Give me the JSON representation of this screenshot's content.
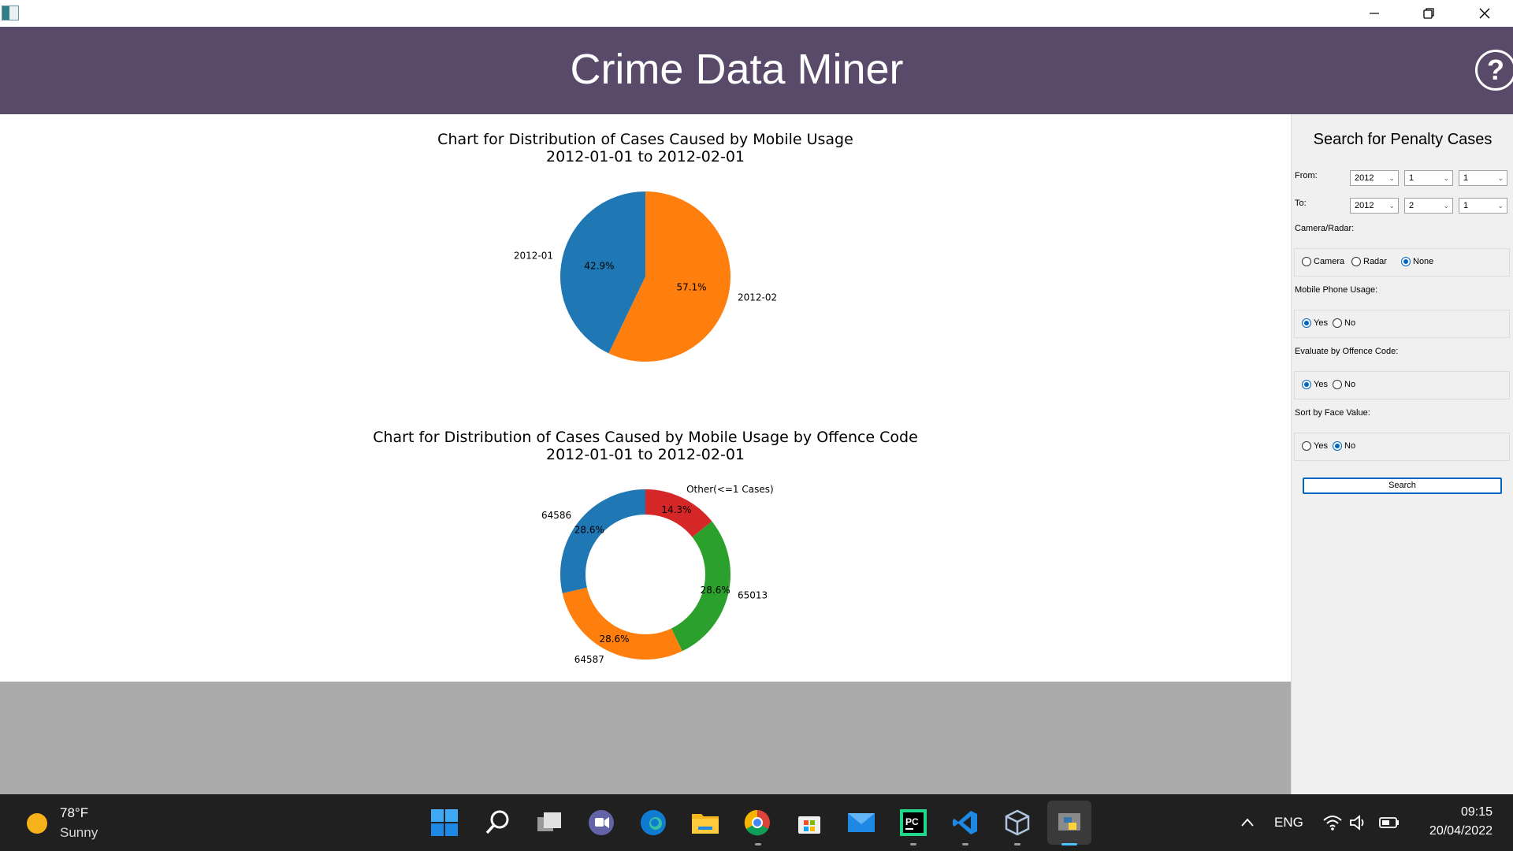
{
  "window": {
    "title": "Crime Data Miner",
    "controls": [
      "minimize",
      "restore",
      "close"
    ]
  },
  "header": {
    "title": "Crime Data Miner",
    "help_label": "?"
  },
  "charts": {
    "chart1": {
      "title_line1": "Chart for Distribution of Cases Caused by Mobile Usage",
      "title_line2": "2012-01-01 to 2012-02-01"
    },
    "chart2": {
      "title_line1": "Chart for Distribution of Cases Caused by Mobile Usage by Offence Code",
      "title_line2": "2012-01-01 to 2012-02-01"
    }
  },
  "chart_data": [
    {
      "type": "pie",
      "title": "Chart for Distribution of Cases Caused by Mobile Usage 2012-01-01 to 2012-02-01",
      "categories": [
        "2012-01",
        "2012-02"
      ],
      "values": [
        42.9,
        57.1
      ],
      "labels": [
        "42.9%",
        "57.1%"
      ],
      "colors": [
        "#1f77b4",
        "#ff7f0e"
      ],
      "start_angle": 90,
      "direction": "counterclockwise"
    },
    {
      "type": "pie",
      "style": "donut",
      "title": "Chart for Distribution of Cases Caused by Mobile Usage by Offence Code 2012-01-01 to 2012-02-01",
      "categories": [
        "64586",
        "64587",
        "65013",
        "Other(<=1 Cases)"
      ],
      "values": [
        28.6,
        28.6,
        28.6,
        14.3
      ],
      "labels": [
        "28.6%",
        "28.6%",
        "28.6%",
        "14.3%"
      ],
      "colors": [
        "#1f77b4",
        "#ff7f0e",
        "#2ca02c",
        "#d62728"
      ],
      "start_angle": 90,
      "direction": "counterclockwise"
    }
  ],
  "sidebar": {
    "title": "Search for Penalty Cases",
    "from_label": "From:",
    "to_label": "To:",
    "from": {
      "year": "2012",
      "month": "1",
      "day": "1"
    },
    "to": {
      "year": "2012",
      "month": "2",
      "day": "1"
    },
    "camera_radar": {
      "label": "Camera/Radar:",
      "options": [
        "Camera",
        "Radar",
        "None"
      ],
      "selected": "None"
    },
    "mobile_usage": {
      "label": "Mobile Phone Usage:",
      "options": [
        "Yes",
        "No"
      ],
      "selected": "Yes"
    },
    "offence_code": {
      "label": "Evaluate by Offence Code:",
      "options": [
        "Yes",
        "No"
      ],
      "selected": "Yes"
    },
    "face_value": {
      "label": "Sort by Face Value:",
      "options": [
        "Yes",
        "No"
      ],
      "selected": "No"
    },
    "search_label": "Search"
  },
  "taskbar": {
    "weather": {
      "temp": "78°F",
      "condition": "Sunny"
    },
    "apps": [
      "start-icon",
      "search-icon",
      "task-view-icon",
      "teams-chat-icon",
      "edge-icon",
      "file-explorer-icon",
      "chrome-icon",
      "store-icon",
      "mail-icon",
      "pycharm-icon",
      "vscode-icon",
      "virtualbox-icon",
      "python-app-icon"
    ],
    "language": "ENG",
    "time": "09:15",
    "date": "20/04/2022"
  }
}
